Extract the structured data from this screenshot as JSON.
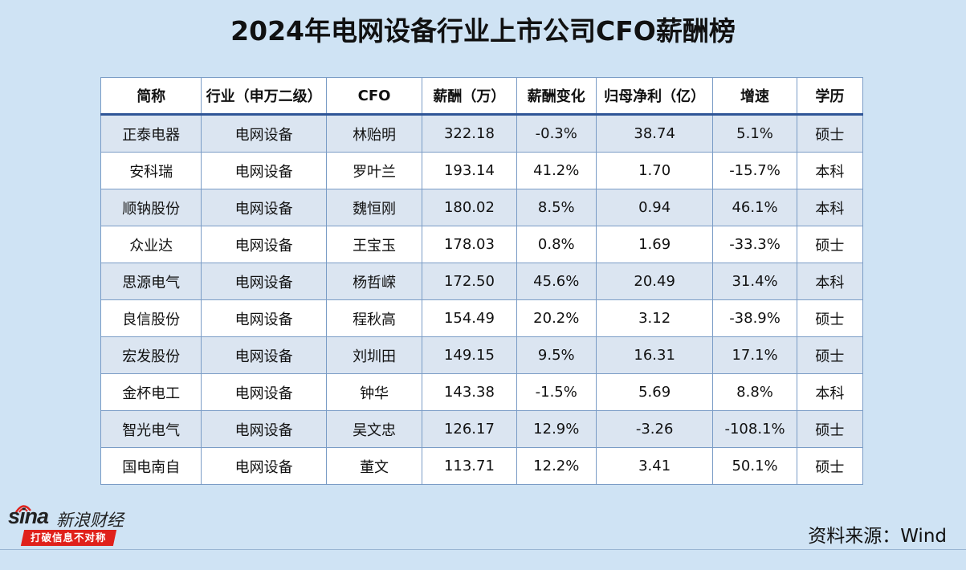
{
  "title": "2024年电网设备行业上市公司CFO薪酬榜",
  "table": {
    "headers": [
      "简称",
      "行业（申万二级）",
      "CFO",
      "薪酬（万）",
      "薪酬变化",
      "归母净利（亿）",
      "增速",
      "学历"
    ],
    "rows": [
      [
        "正泰电器",
        "电网设备",
        "林贻明",
        "322.18",
        "-0.3%",
        "38.74",
        "5.1%",
        "硕士"
      ],
      [
        "安科瑞",
        "电网设备",
        "罗叶兰",
        "193.14",
        "41.2%",
        "1.70",
        "-15.7%",
        "本科"
      ],
      [
        "顺钠股份",
        "电网设备",
        "魏恒刚",
        "180.02",
        "8.5%",
        "0.94",
        "46.1%",
        "本科"
      ],
      [
        "众业达",
        "电网设备",
        "王宝玉",
        "178.03",
        "0.8%",
        "1.69",
        "-33.3%",
        "硕士"
      ],
      [
        "思源电气",
        "电网设备",
        "杨哲嵘",
        "172.50",
        "45.6%",
        "20.49",
        "31.4%",
        "本科"
      ],
      [
        "良信股份",
        "电网设备",
        "程秋高",
        "154.49",
        "20.2%",
        "3.12",
        "-38.9%",
        "硕士"
      ],
      [
        "宏发股份",
        "电网设备",
        "刘圳田",
        "149.15",
        "9.5%",
        "16.31",
        "17.1%",
        "硕士"
      ],
      [
        "金杯电工",
        "电网设备",
        "钟华",
        "143.38",
        "-1.5%",
        "5.69",
        "8.8%",
        "本科"
      ],
      [
        "智光电气",
        "电网设备",
        "吴文忠",
        "126.17",
        "12.9%",
        "-3.26",
        "-108.1%",
        "硕士"
      ],
      [
        "国电南自",
        "电网设备",
        "董文",
        "113.71",
        "12.2%",
        "3.41",
        "50.1%",
        "硕士"
      ]
    ]
  },
  "logo": {
    "brand": "sina",
    "brand_cn": "新浪财经",
    "slogan": "打破信息不对称"
  },
  "source": "资料来源：Wind"
}
